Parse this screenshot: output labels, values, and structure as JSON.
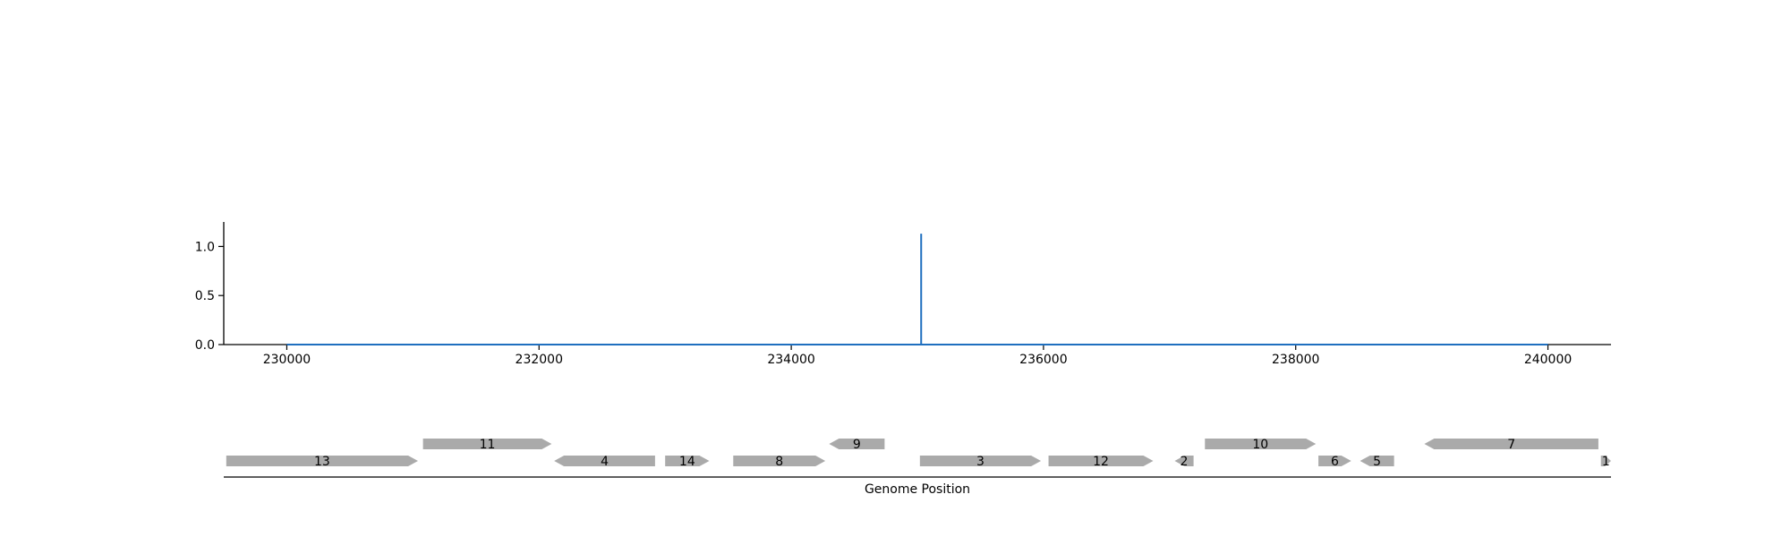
{
  "chart_data": [
    {
      "type": "line",
      "title": "",
      "xlabel": "",
      "ylabel": "",
      "xlim": [
        229500,
        240500
      ],
      "ylim": [
        0,
        1.25
      ],
      "x_ticks": [
        230000,
        232000,
        234000,
        236000,
        238000,
        240000
      ],
      "x_tick_labels": [
        "230000",
        "232000",
        "234000",
        "236000",
        "238000",
        "240000"
      ],
      "y_ticks": [
        0,
        0.5,
        1
      ],
      "y_tick_labels": [
        "0.0",
        "0.5",
        "1.0"
      ],
      "grid": false,
      "series": [
        {
          "color": "#1f6fbf",
          "x": [
            230000,
            235030,
            235030,
            235030,
            240000
          ],
          "y": [
            0,
            0,
            1.13,
            0,
            0
          ]
        }
      ]
    },
    {
      "type": "gene_track",
      "xlabel": "Genome Position",
      "xlim": [
        229500,
        240500
      ],
      "color": "#aaaaaa",
      "genes": [
        {
          "label": "13",
          "start": 229520,
          "end": 231040,
          "strand": "+",
          "row": 0
        },
        {
          "label": "11",
          "start": 231080,
          "end": 232100,
          "strand": "+",
          "row": 1
        },
        {
          "label": "4",
          "start": 232120,
          "end": 232920,
          "strand": "-",
          "row": 0
        },
        {
          "label": "14",
          "start": 233000,
          "end": 233350,
          "strand": "+",
          "row": 0
        },
        {
          "label": "8",
          "start": 233540,
          "end": 234270,
          "strand": "+",
          "row": 0
        },
        {
          "label": "9",
          "start": 234300,
          "end": 234740,
          "strand": "-",
          "row": 1
        },
        {
          "label": "3",
          "start": 235020,
          "end": 235980,
          "strand": "+",
          "row": 0
        },
        {
          "label": "12",
          "start": 236040,
          "end": 236870,
          "strand": "+",
          "row": 0
        },
        {
          "label": "2",
          "start": 237040,
          "end": 237190,
          "strand": "-",
          "row": 0
        },
        {
          "label": "10",
          "start": 237280,
          "end": 238160,
          "strand": "+",
          "row": 1
        },
        {
          "label": "6",
          "start": 238180,
          "end": 238440,
          "strand": "+",
          "row": 0
        },
        {
          "label": "5",
          "start": 238510,
          "end": 238780,
          "strand": "-",
          "row": 0
        },
        {
          "label": "7",
          "start": 239020,
          "end": 240400,
          "strand": "-",
          "row": 1
        },
        {
          "label": "1",
          "start": 240420,
          "end": 240500,
          "strand": "+",
          "row": 0
        }
      ]
    }
  ]
}
